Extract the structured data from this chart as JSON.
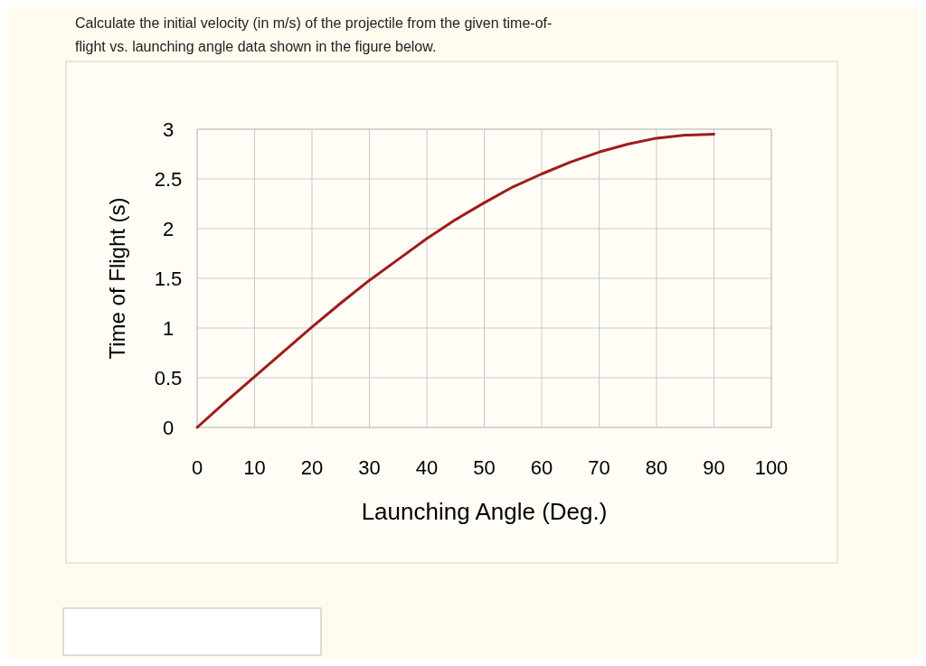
{
  "chart_data": {
    "type": "line",
    "title": "Calculate the initial velocity (in m/s) of the projectile from the given time-of-flight vs. launching angle data shown in the figure below.",
    "xlabel": "Launching Angle (Deg.)",
    "ylabel": "Time of Flight (s)",
    "x": [
      0,
      5,
      10,
      15,
      20,
      25,
      30,
      35,
      40,
      45,
      50,
      55,
      60,
      65,
      70,
      75,
      80,
      85,
      90
    ],
    "series": [
      {
        "color": "#9e1c1c",
        "values": [
          0,
          0.26,
          0.51,
          0.76,
          1.01,
          1.25,
          1.48,
          1.69,
          1.9,
          2.09,
          2.26,
          2.42,
          2.55,
          2.67,
          2.77,
          2.85,
          2.91,
          2.94,
          2.95
        ]
      }
    ],
    "xlim": [
      0,
      100
    ],
    "xticks": [
      0,
      10,
      20,
      30,
      40,
      50,
      60,
      70,
      80,
      90,
      100
    ],
    "ylim": [
      0,
      3
    ],
    "yticks": [
      0,
      0.5,
      1,
      1.5,
      2,
      2.5,
      3
    ],
    "grid": true,
    "marker": "none",
    "line_style": "solid"
  }
}
